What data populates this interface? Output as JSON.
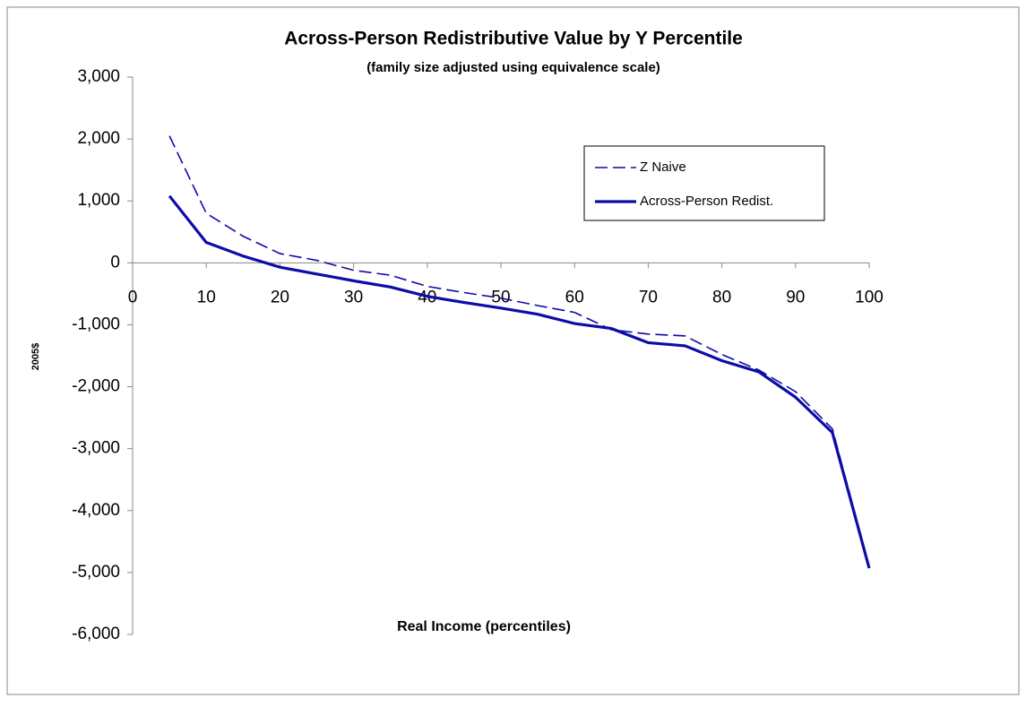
{
  "chart_data": {
    "type": "line",
    "title": "Across-Person Redistributive Value by Y Percentile",
    "subtitle": "(family size adjusted using equivalence scale)",
    "x_label": "Real Income (percentiles)",
    "y_label": "2005$",
    "x": [
      5,
      10,
      15,
      20,
      25,
      30,
      35,
      40,
      45,
      50,
      55,
      60,
      65,
      70,
      75,
      80,
      85,
      90,
      95,
      100
    ],
    "series": [
      {
        "name": "Z Naive",
        "color": "#0c0ca8",
        "dash": true,
        "values": [
          2050,
          800,
          430,
          150,
          40,
          -120,
          -200,
          -380,
          -480,
          -570,
          -690,
          -800,
          -1080,
          -1150,
          -1180,
          -1480,
          -1730,
          -2080,
          -2680,
          -4900
        ]
      },
      {
        "name": "Across-Person Redist.",
        "color": "#0c0ca8",
        "dash": false,
        "values": [
          1080,
          330,
          110,
          -70,
          -180,
          -290,
          -390,
          -540,
          -640,
          -730,
          -830,
          -980,
          -1060,
          -1290,
          -1340,
          -1580,
          -1760,
          -2170,
          -2740,
          -4930
        ]
      }
    ],
    "xlim": [
      0,
      100
    ],
    "xticks": [
      0,
      10,
      20,
      30,
      40,
      50,
      60,
      70,
      80,
      90,
      100
    ],
    "ylim": [
      -6000,
      3000
    ],
    "yticks": [
      {
        "value": -6000,
        "label": "-6,000"
      },
      {
        "value": -5000,
        "label": "-5,000"
      },
      {
        "value": -4000,
        "label": "-4,000"
      },
      {
        "value": -3000,
        "label": "-3,000"
      },
      {
        "value": -2000,
        "label": "-2,000"
      },
      {
        "value": -1000,
        "label": "-1,000"
      },
      0,
      {
        "value": 1000,
        "label": "1,000"
      },
      {
        "value": 2000,
        "label": "2,000"
      },
      {
        "value": 3000,
        "label": "3,000"
      }
    ],
    "grid": false,
    "legend": "upper right"
  }
}
